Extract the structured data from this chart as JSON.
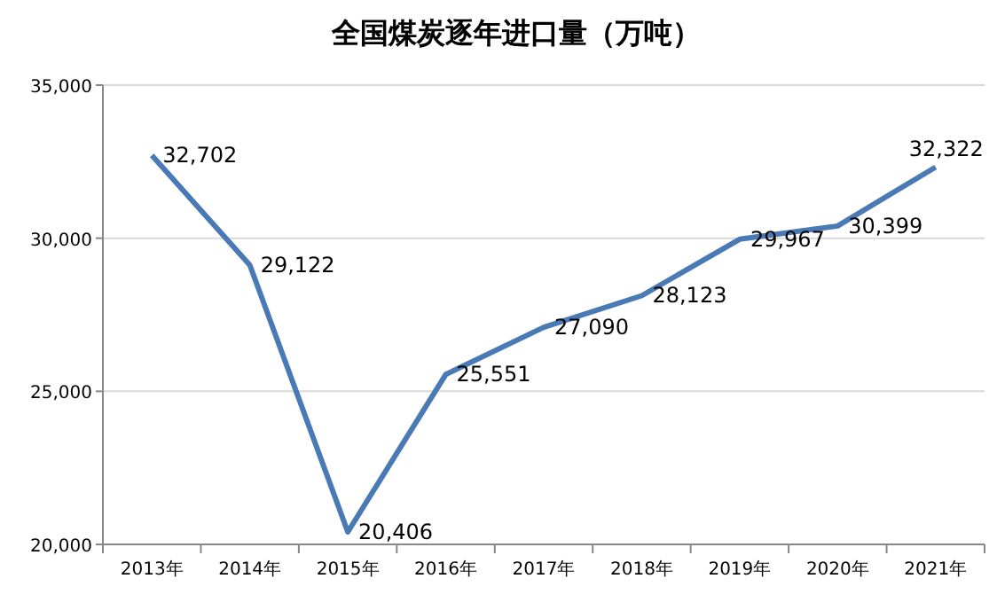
{
  "chart_data": {
    "type": "line",
    "title": "全国煤炭逐年进口量（万吨）",
    "categories": [
      "2013年",
      "2014年",
      "2015年",
      "2016年",
      "2017年",
      "2018年",
      "2019年",
      "2020年",
      "2021年"
    ],
    "series": [
      {
        "color": "#4a7ab5",
        "values": [
          32702,
          29122,
          20406,
          25551,
          27090,
          28123,
          29967,
          30399,
          32322
        ]
      }
    ],
    "ylim": [
      20000,
      35000
    ],
    "yticks": [
      {
        "value": 20000,
        "label": "20,000"
      },
      {
        "value": 25000,
        "label": "25,000"
      },
      {
        "value": 30000,
        "label": "30,000"
      },
      {
        "value": 35000,
        "label": "35,000"
      }
    ],
    "value_labels": [
      "32,702",
      "29,122",
      "20,406",
      "25,551",
      "27,090",
      "28,123",
      "29,967",
      "30,399",
      "32,322"
    ],
    "grid": "y",
    "marker": "none",
    "line_style": "solid"
  }
}
